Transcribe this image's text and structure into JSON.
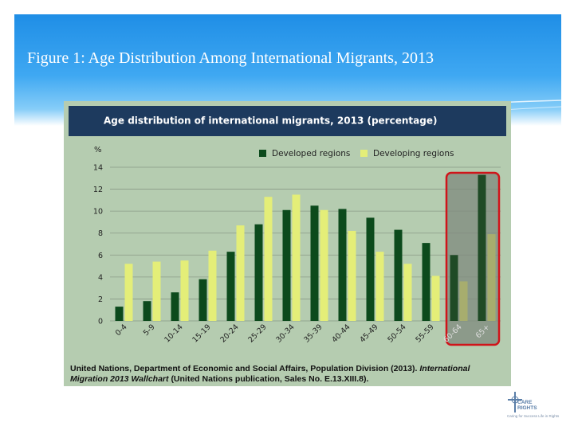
{
  "slide": {
    "title": "Figure 1: Age Distribution Among International Migrants, 2013"
  },
  "chart_data": {
    "type": "bar",
    "title": "Age distribution of international migrants, 2013 (percentage)",
    "ylabel": "%",
    "ylim": [
      0,
      14
    ],
    "yticks": [
      0,
      2,
      4,
      6,
      8,
      10,
      12,
      14
    ],
    "categories": [
      "0-4",
      "5-9",
      "10-14",
      "15-19",
      "20-24",
      "25-29",
      "30-34",
      "35-39",
      "40-44",
      "45-49",
      "50-54",
      "55-59",
      "60-64",
      "65+"
    ],
    "series": [
      {
        "name": "Developed regions",
        "color": "#0c4a1c",
        "values": [
          1.3,
          1.8,
          2.6,
          3.8,
          6.3,
          8.8,
          10.1,
          10.5,
          10.2,
          9.4,
          8.3,
          7.1,
          6.0,
          13.3
        ]
      },
      {
        "name": "Developing regions",
        "color": "#e4ee78",
        "values": [
          5.2,
          5.4,
          5.5,
          6.4,
          8.7,
          11.3,
          11.5,
          10.1,
          8.2,
          6.3,
          5.2,
          4.1,
          3.6,
          7.9
        ]
      }
    ],
    "legend_position": "top-right",
    "grid": true,
    "highlight_categories": [
      "60-64",
      "65+"
    ],
    "source": {
      "plain": "United Nations, Department of Economic and Social Affairs, Population Division (2013).",
      "italic": "International Migration 2013 Wallchart",
      "rest": "(United Nations publication, Sales No. E.13.XIII.8)."
    }
  },
  "logo": {
    "line1": "CARE",
    "line2": "RIGHTS",
    "tagline": "Caring for Success Life in Rights"
  }
}
